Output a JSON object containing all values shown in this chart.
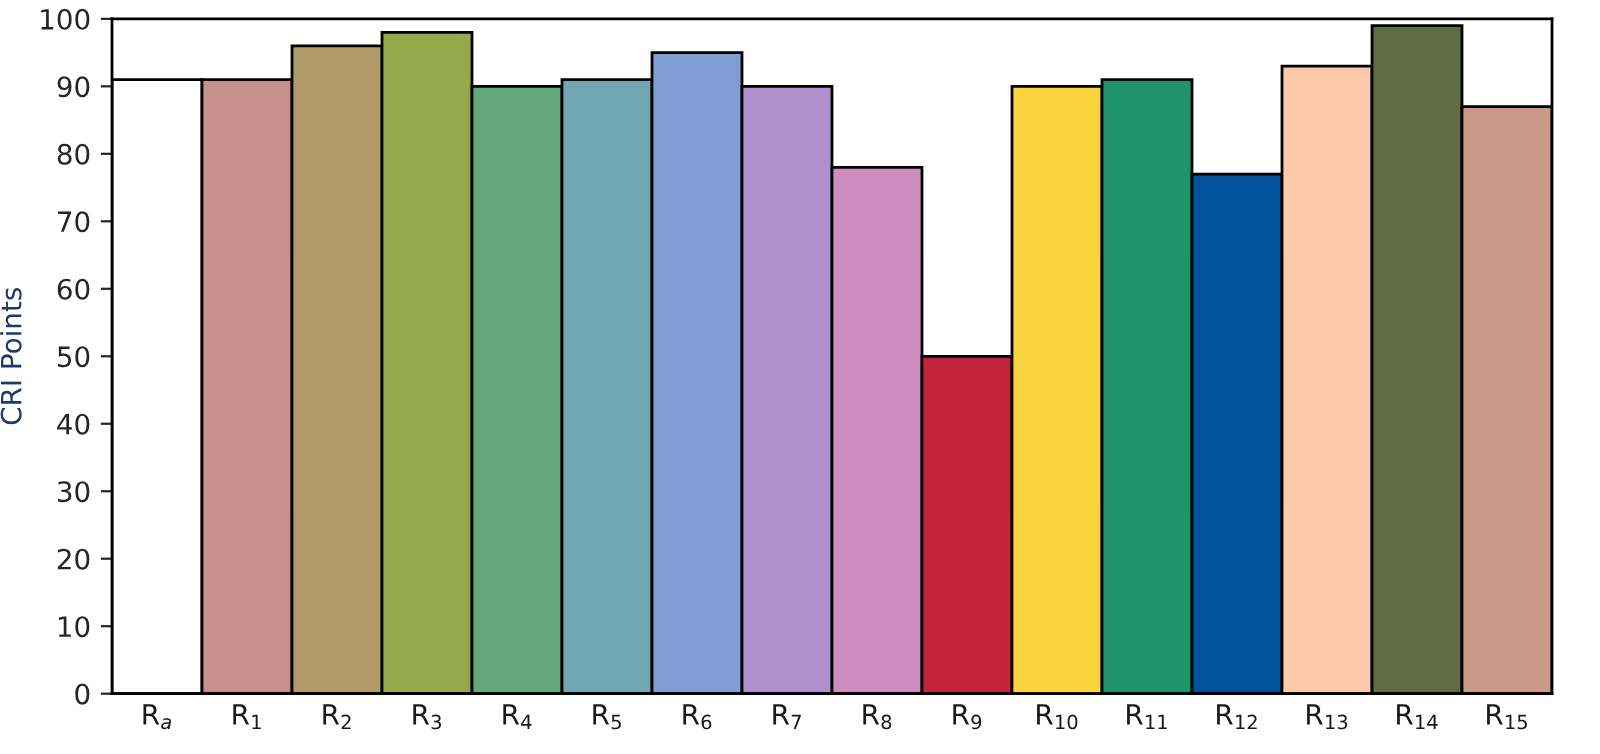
{
  "chart_data": {
    "type": "bar",
    "ylabel": "CRI Points",
    "categories": [
      "R$_{a}$",
      "R$_{1}$",
      "R$_{2}$",
      "R$_{3}$",
      "R$_{4}$",
      "R$_{5}$",
      "R$_{6}$",
      "R$_{7}$",
      "R$_{8}$",
      "R$_{9}$",
      "R$_{10}$",
      "R$_{11}$",
      "R$_{12}$",
      "R$_{13}$",
      "R$_{14}$",
      "R$_{15}$"
    ],
    "values": [
      91,
      91,
      96,
      98,
      90,
      91,
      95,
      90,
      78,
      50,
      90,
      91,
      77,
      93,
      99,
      87
    ],
    "colors": [
      "#ffffff",
      "#c8908c",
      "#b09a68",
      "#97a84c",
      "#65a97a",
      "#70a7b2",
      "#7f9ed4",
      "#b090cc",
      "#cc8dbf",
      "#c3243b",
      "#fad43e",
      "#1e946c",
      "#00529c",
      "#fec8ab",
      "#5f6b40",
      "#cb9988"
    ],
    "ylim": [
      0,
      100
    ],
    "yticks": [
      0,
      10,
      20,
      30,
      40,
      50,
      60,
      70,
      80,
      90,
      100
    ],
    "grid": false,
    "legend": false
  }
}
